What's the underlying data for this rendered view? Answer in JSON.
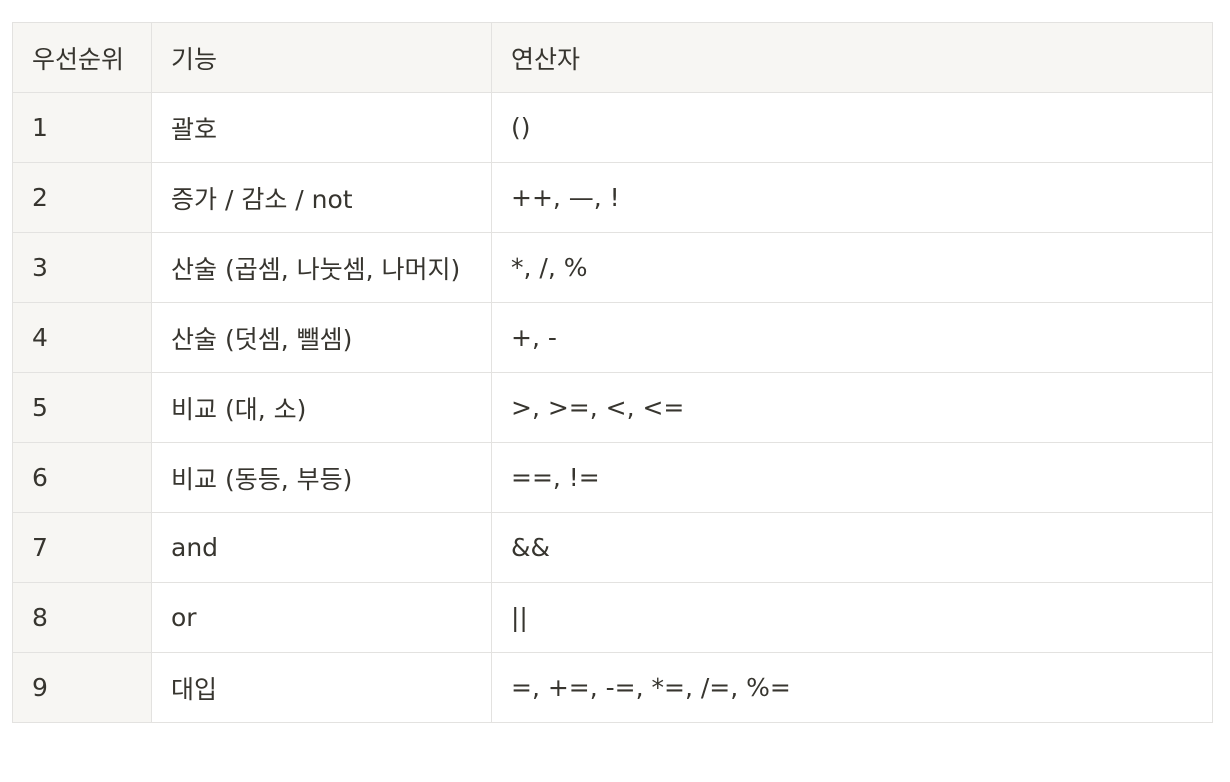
{
  "table": {
    "headers": [
      "우선순위",
      "기능",
      "연산자"
    ],
    "rows": [
      [
        "1",
        "괄호",
        "()"
      ],
      [
        "2",
        "증가 / 감소 / not",
        "++, —, !"
      ],
      [
        "3",
        "산술 (곱셈, 나눗셈, 나머지)",
        "*, /, %"
      ],
      [
        "4",
        "산술 (덧셈, 뺄셈)",
        "+, -"
      ],
      [
        "5",
        "비교 (대, 소)",
        ">, >=, <, <="
      ],
      [
        "6",
        "비교 (동등, 부등)",
        "==, !="
      ],
      [
        "7",
        "and",
        "&&"
      ],
      [
        "8",
        "or",
        "||"
      ],
      [
        "9",
        "대입",
        "=, +=, -=, *=, /=, %="
      ]
    ]
  },
  "colors": {
    "text": "#37352f",
    "header_bg": "#f7f6f3",
    "first_col_bg": "#f7f6f3",
    "border": "#e3e2e0"
  }
}
